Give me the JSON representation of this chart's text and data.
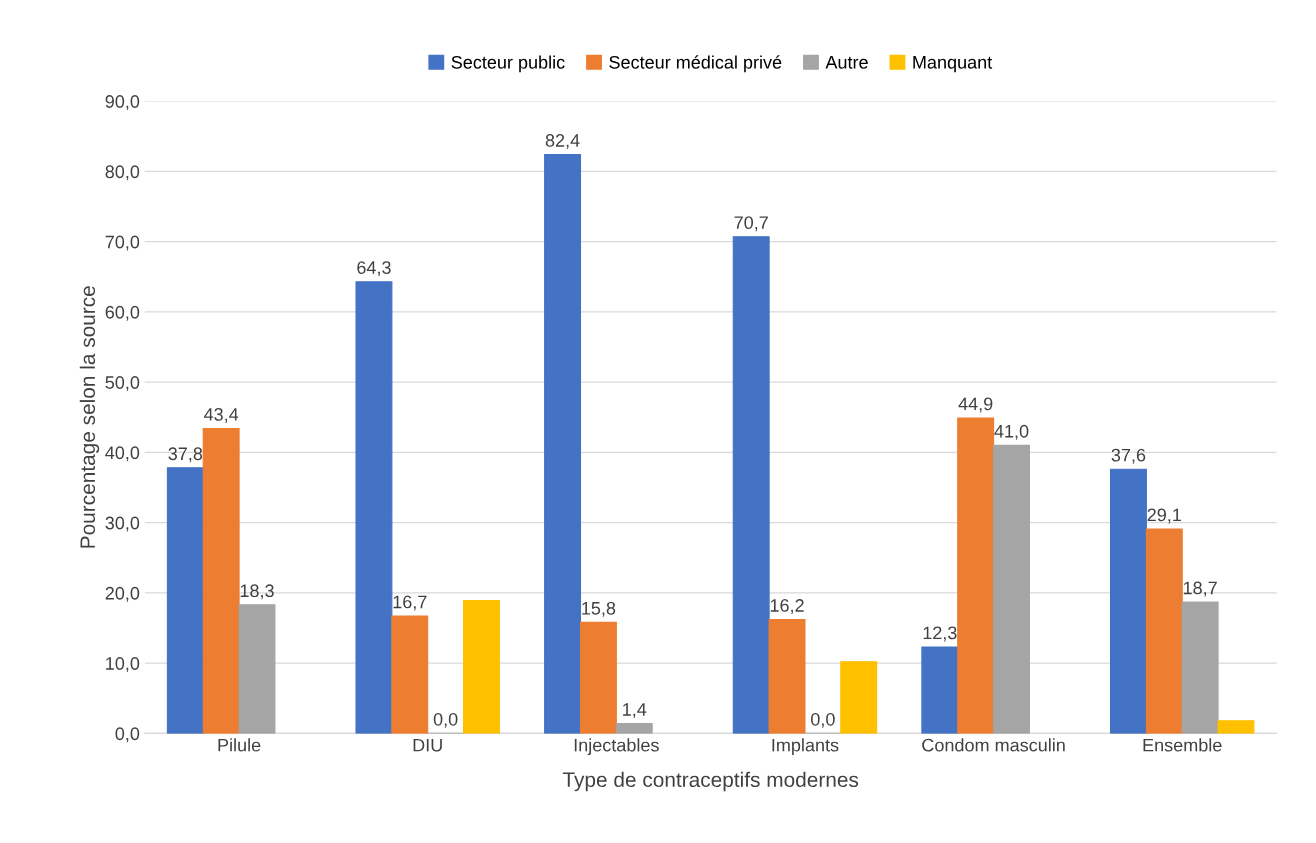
{
  "chart_data": {
    "type": "bar",
    "xlabel": "Type de contraceptifs modernes",
    "ylabel": "Pourcentage selon la source",
    "categories": [
      "Pilule",
      "DIU",
      "Injectables",
      "Implants",
      "Condom masculin",
      "Ensemble"
    ],
    "series": [
      {
        "name": "Secteur public",
        "color": "#4472c4",
        "values": [
          37.8,
          64.3,
          82.4,
          70.7,
          12.3,
          37.6
        ],
        "value_labels": [
          "37,8",
          "64,3",
          "82,4",
          "70,7",
          "12,3",
          "37,6"
        ]
      },
      {
        "name": "Secteur médical privé",
        "color": "#ed7d31",
        "values": [
          43.4,
          16.7,
          15.8,
          16.2,
          44.9,
          29.1
        ],
        "value_labels": [
          "43,4",
          "16,7",
          "15,8",
          "16,2",
          "44,9",
          "29,1"
        ]
      },
      {
        "name": "Autre",
        "color": "#a5a5a5",
        "values": [
          18.3,
          0.0,
          1.4,
          0.0,
          41.0,
          18.7
        ],
        "value_labels": [
          "18,3",
          "0,0",
          "1,4",
          "0,0",
          "41,0",
          "18,7"
        ]
      },
      {
        "name": "Manquant",
        "color": "#ffc000",
        "values": [
          null,
          18.9,
          null,
          10.2,
          null,
          1.8
        ],
        "value_labels": [
          null,
          null,
          null,
          null,
          null,
          null
        ]
      }
    ],
    "ylim": [
      0,
      90
    ],
    "yticks": [
      {
        "value": 0,
        "label": "0,0"
      },
      {
        "value": 10,
        "label": "10,0"
      },
      {
        "value": 20,
        "label": "20,0"
      },
      {
        "value": 30,
        "label": "30,0"
      },
      {
        "value": 40,
        "label": "40,0"
      },
      {
        "value": 50,
        "label": "50,0"
      },
      {
        "value": 60,
        "label": "60,0"
      },
      {
        "value": 70,
        "label": "70,0"
      },
      {
        "value": 80,
        "label": "80,0"
      },
      {
        "value": 90,
        "label": "90,0"
      }
    ],
    "grid": "y",
    "legend": "top"
  }
}
